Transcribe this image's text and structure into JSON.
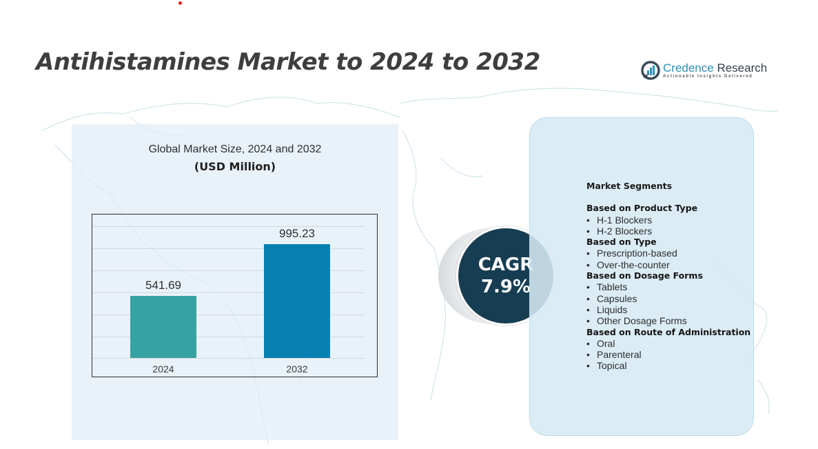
{
  "page": {
    "title": "Antihistamines Market to 2024 to 2032"
  },
  "logo": {
    "name_part1": "Credence",
    "name_part2": " Research",
    "tagline": "Actionable Insights Delivered",
    "icon": "bar-chart-circle-icon",
    "colors": {
      "primary": "#2c8fb6",
      "dark": "#333f4d"
    }
  },
  "chart": {
    "title": "Global Market Size,  2024 and 2032",
    "unit": "(USD Million)"
  },
  "chart_data": {
    "type": "bar",
    "title": "Global Market Size, 2024 and 2032",
    "subtitle": "(USD Million)",
    "categories": [
      "2024",
      "2032"
    ],
    "values": [
      541.69,
      995.23
    ],
    "value_labels": [
      "541.69",
      "995.23"
    ],
    "colors": [
      "#35a3a1",
      "#0880b2"
    ],
    "xlabel": "",
    "ylabel": "",
    "ylim": [
      0,
      1200
    ],
    "grid": true,
    "legend": false
  },
  "cagr": {
    "label": "CAGR",
    "value": "7.9%",
    "color": "#173d52"
  },
  "segments": {
    "heading": "Market Segments",
    "groups": [
      {
        "title": "Based on Product Type",
        "items": [
          "H-1 Blockers",
          "H-2 Blockers"
        ]
      },
      {
        "title": "Based on Type",
        "items": [
          "Prescription-based",
          "Over-the-counter"
        ]
      },
      {
        "title": "Based on Dosage Forms",
        "items": [
          "Tablets",
          "Capsules",
          "Liquids",
          "Other Dosage Forms"
        ]
      },
      {
        "title": "Based on Route of Administration",
        "items": [
          "Oral",
          "Parenteral",
          "Topical"
        ]
      }
    ],
    "bullet": "•"
  }
}
